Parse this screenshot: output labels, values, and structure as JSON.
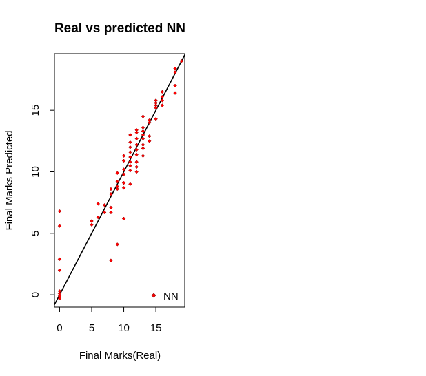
{
  "chart_data": {
    "type": "scatter",
    "title": "Real vs predicted NN",
    "xlabel": "Final Marks(Real)",
    "ylabel": "Final Marks Predicted",
    "xlim": [
      -0.8,
      19.5
    ],
    "ylim": [
      -1.0,
      19.6
    ],
    "x_ticks": [
      0,
      5,
      10,
      15
    ],
    "y_ticks": [
      0,
      5,
      10,
      15
    ],
    "grid": false,
    "legend_position": "bottom-right",
    "reference_line": {
      "slope": 1,
      "intercept": 0,
      "color": "#000000"
    },
    "series": [
      {
        "name": "NN",
        "color": "#ff0000",
        "marker": "diamond",
        "points": [
          [
            0,
            6.8
          ],
          [
            0,
            5.6
          ],
          [
            0,
            2.9
          ],
          [
            0,
            2.0
          ],
          [
            0,
            0.3
          ],
          [
            0,
            0.1
          ],
          [
            0,
            -0.1
          ],
          [
            0,
            -0.3
          ],
          [
            5,
            6.0
          ],
          [
            5,
            5.7
          ],
          [
            6,
            6.3
          ],
          [
            6,
            7.4
          ],
          [
            7,
            7.3
          ],
          [
            7,
            6.7
          ],
          [
            8,
            8.6
          ],
          [
            8,
            8.2
          ],
          [
            8,
            7.1
          ],
          [
            8,
            6.7
          ],
          [
            8,
            2.8
          ],
          [
            9,
            9.9
          ],
          [
            9,
            9.2
          ],
          [
            9,
            8.8
          ],
          [
            9,
            8.6
          ],
          [
            9,
            4.1
          ],
          [
            10,
            11.3
          ],
          [
            10,
            10.9
          ],
          [
            10,
            10.2
          ],
          [
            10,
            9.8
          ],
          [
            10,
            9.1
          ],
          [
            10,
            8.7
          ],
          [
            10,
            6.2
          ],
          [
            11,
            13.0
          ],
          [
            11,
            12.4
          ],
          [
            11,
            12.0
          ],
          [
            11,
            11.6
          ],
          [
            11,
            11.2
          ],
          [
            11,
            10.8
          ],
          [
            11,
            10.5
          ],
          [
            11,
            10.1
          ],
          [
            11,
            9.0
          ],
          [
            12,
            13.4
          ],
          [
            12,
            13.2
          ],
          [
            12,
            12.7
          ],
          [
            12,
            12.2
          ],
          [
            12,
            11.8
          ],
          [
            12,
            11.4
          ],
          [
            12,
            10.8
          ],
          [
            12,
            10.4
          ],
          [
            12,
            10.0
          ],
          [
            13,
            14.5
          ],
          [
            13,
            13.6
          ],
          [
            13,
            13.3
          ],
          [
            13,
            13.0
          ],
          [
            13,
            12.7
          ],
          [
            13,
            12.2
          ],
          [
            13,
            11.9
          ],
          [
            13,
            11.3
          ],
          [
            14,
            14.2
          ],
          [
            14,
            14.0
          ],
          [
            14,
            12.9
          ],
          [
            14,
            12.5
          ],
          [
            15,
            15.8
          ],
          [
            15,
            15.6
          ],
          [
            15,
            15.4
          ],
          [
            15,
            15.2
          ],
          [
            15,
            14.3
          ],
          [
            16,
            16.5
          ],
          [
            16,
            16.1
          ],
          [
            16,
            15.8
          ],
          [
            16,
            15.4
          ],
          [
            18,
            18.4
          ],
          [
            18,
            18.1
          ],
          [
            18,
            17.0
          ],
          [
            18,
            16.4
          ],
          [
            19,
            19.0
          ]
        ]
      }
    ]
  }
}
